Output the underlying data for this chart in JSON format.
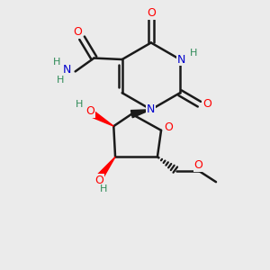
{
  "background_color": "#ebebeb",
  "atom_color_N": "#0000cd",
  "atom_color_O": "#ff0000",
  "atom_color_H_label": "#2e8b57",
  "bond_color": "#1a1a1a",
  "bond_width": 1.8,
  "fig_width": 3.0,
  "fig_height": 3.0,
  "dpi": 100,
  "xlim": [
    0,
    10
  ],
  "ylim": [
    0,
    10
  ]
}
